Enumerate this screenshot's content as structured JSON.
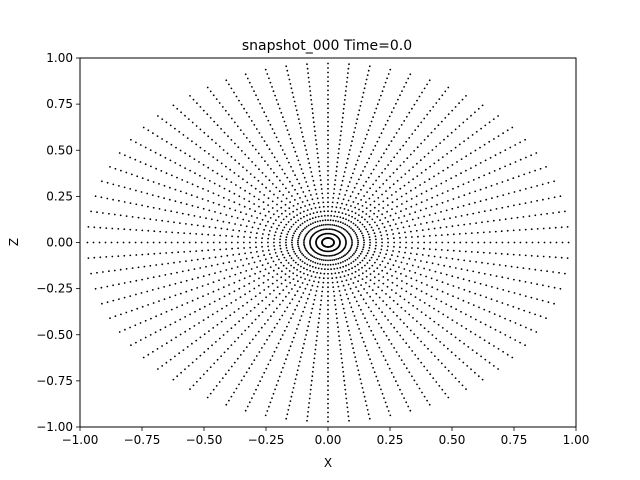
{
  "chart_data": {
    "type": "scatter",
    "title": "snapshot_000  Time=0.0",
    "xlabel": "X",
    "ylabel": "Z",
    "xlim": [
      -1.0,
      1.0
    ],
    "ylim": [
      -1.0,
      1.0
    ],
    "xticks": [
      "−1.00",
      "−0.75",
      "−0.50",
      "−0.25",
      "0.00",
      "0.25",
      "0.50",
      "0.75",
      "1.00"
    ],
    "yticks": [
      "−1.00",
      "−0.75",
      "−0.50",
      "−0.25",
      "0.00",
      "0.25",
      "0.50",
      "0.75",
      "1.00"
    ],
    "grid": false,
    "marker_color": "#000000",
    "series": [
      {
        "description_pattern": "radial_spoke_grid",
        "points_generation": {
          "x_columns": [
            -0.95,
            -0.9,
            -0.85,
            -0.8,
            -0.75,
            -0.7,
            -0.65,
            -0.6,
            -0.55,
            -0.5,
            -0.45,
            -0.4,
            -0.35,
            -0.3,
            -0.25,
            -0.2,
            -0.15,
            -0.1,
            -0.05,
            0.0,
            0.05,
            0.1,
            0.15,
            0.2,
            0.25,
            0.3,
            0.35,
            0.4,
            0.45,
            0.5,
            0.55,
            0.6,
            0.65,
            0.7,
            0.75,
            0.8,
            0.85,
            0.9,
            0.95
          ],
          "spokes_per_column_half": 14,
          "radius_max": 0.97
        }
      }
    ]
  }
}
